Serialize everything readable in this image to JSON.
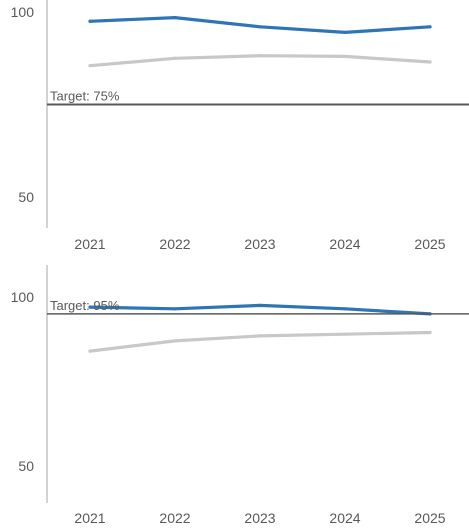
{
  "chart_data": [
    {
      "type": "line",
      "x": [
        "2021",
        "2022",
        "2023",
        "2024",
        "2025"
      ],
      "y_ticks": [
        "100",
        "50"
      ],
      "ylim": [
        40,
        102
      ],
      "series": [
        {
          "values": [
            97.5,
            98.5,
            96,
            94.5,
            96
          ],
          "color": "#2e75b6"
        },
        {
          "values": [
            85.5,
            87.5,
            88.2,
            88,
            86.5
          ],
          "color": "#c8c8c8"
        }
      ],
      "target": {
        "label": "Target: 75%",
        "value": 75
      },
      "grid": false
    },
    {
      "type": "line",
      "x": [
        "2021",
        "2022",
        "2023",
        "2024",
        "2025"
      ],
      "y_ticks": [
        "100",
        "50"
      ],
      "ylim": [
        40,
        110
      ],
      "series": [
        {
          "values": [
            97,
            96.5,
            97.5,
            96.5,
            95
          ],
          "color": "#2e75b6"
        },
        {
          "values": [
            84,
            87,
            88.5,
            89,
            89.5
          ],
          "color": "#c8c8c8"
        }
      ],
      "target": {
        "label": "Target: 95%",
        "value": 95
      },
      "grid": false
    }
  ]
}
